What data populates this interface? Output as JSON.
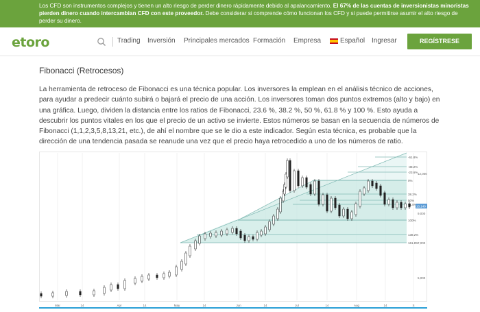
{
  "risk_banner": {
    "text_part1": "Los CFD son instrumentos complejos y tienen un alto riesgo de perder dinero rápidamente debido al apalancamiento. ",
    "text_bold": "El 67% de las cuentas de inversionistas minoristas pierden dinero cuando intercambian CFD con este proveedor.",
    "text_part2": " Debe considerar si comprende cómo funcionan los CFD y si puede permitirse asumir el alto riesgo de perder su dinero."
  },
  "nav": {
    "logo": "etoro",
    "items": [
      "Trading",
      "Inversión",
      "Principales mercados",
      "Formación",
      "Empresa"
    ],
    "language": "Español",
    "login": "Ingresar",
    "register": "REGÍSTRESE"
  },
  "article": {
    "title": "Fibonacci (Retrocesos)",
    "body": "La herramienta de retroceso de Fibonacci es una técnica popular. Los inversores la emplean en el análisis técnico de acciones, para ayudar a predecir cuánto subirá o bajará el precio de una acción. Los inversores toman dos puntos extremos (alto y bajo) en una gráfica. Luego, dividen la distancia entre los ratios de Fibonacci, 23.6 %, 38.2 %, 50 %, 61.8 % y 100 %. Esto ayuda a descubrir los puntos vitales en los que el precio de un activo se invierte. Estos números se basan en la secuencia de números de Fibonacci (1,1,2,3,5,8,13,21, etc.), de ahí el nombre que se le dio a este indicador. Según esta técnica, es probable que la dirección de una tendencia pasada se reanude una vez que el precio haya retrocedido a uno de los números de ratio."
  },
  "chart_data": {
    "type": "candlestick",
    "x_labels": [
      "Mar",
      "14",
      "Apr",
      "14",
      "May",
      "14",
      "Jun",
      "14",
      "Jul",
      "14",
      "Aug",
      "14",
      "S"
    ],
    "y_ticks": [
      "12,000",
      "9,000",
      "7,000",
      "5,000"
    ],
    "fib_labels": [
      "-61.8%",
      "-38.2%",
      "-23.6%",
      "0%",
      "38.2%",
      "50%",
      "61.8%",
      "100%",
      "138.2%",
      "161.8%"
    ],
    "current_price_label": "10,140",
    "colors": {
      "fib_fill": "#d8efec",
      "fib_line": "#7fb9b3",
      "candle": "#222222",
      "price_tag": "#5b9bd5"
    }
  }
}
